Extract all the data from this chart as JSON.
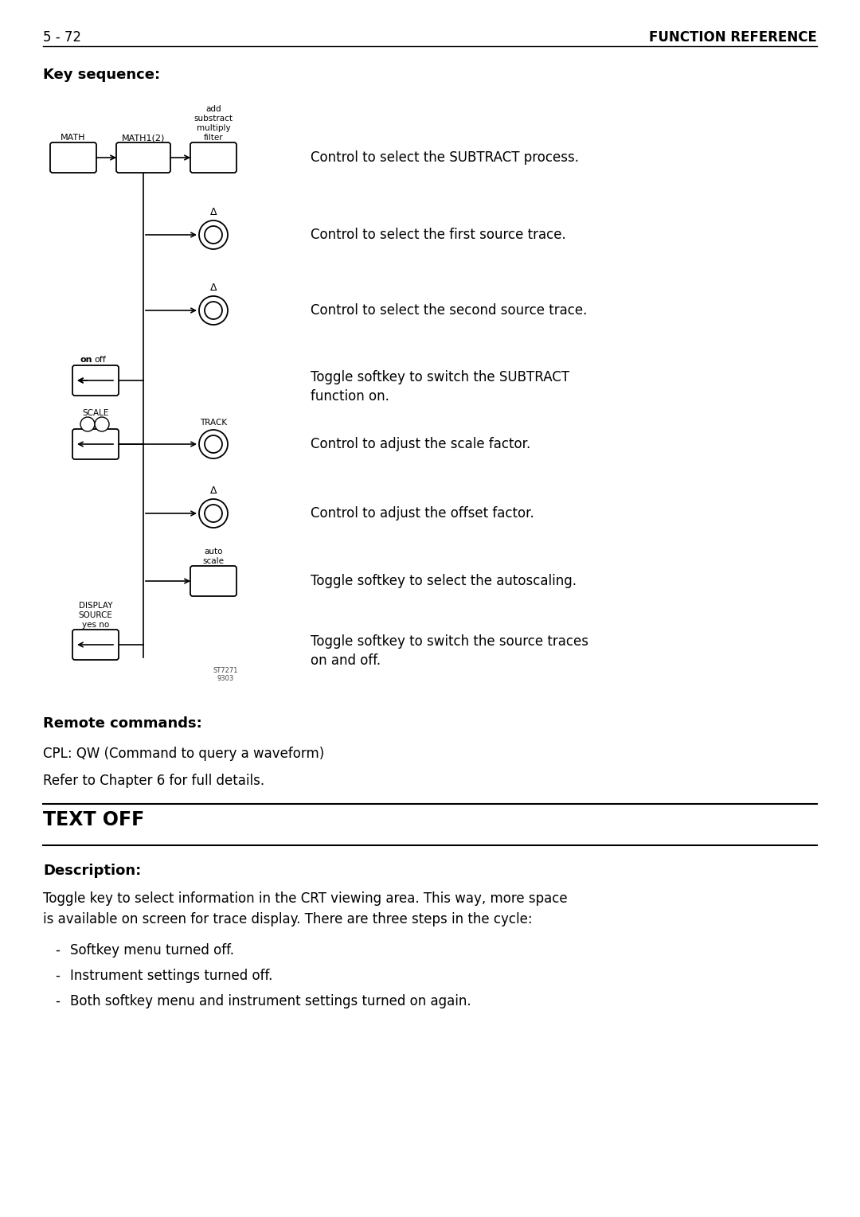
{
  "bg_color": "#ffffff",
  "page_num": "5 - 72",
  "page_title": "FUNCTION REFERENCE",
  "section1_title": "Key sequence:",
  "remote_commands_title": "Remote commands:",
  "remote_line1": "CPL: QW (Command to query a waveform)",
  "remote_line2": "Refer to Chapter 6 for full details.",
  "section2_title": "TEXT OFF",
  "description_title": "Description:",
  "description_text": "Toggle key to select information in the CRT viewing area. This way, more space\nis available on screen for trace display. There are three steps in the cycle:",
  "bullet_items": [
    "Softkey menu turned off.",
    "Instrument settings turned off.",
    "Both softkey menu and instrument settings turned on again."
  ],
  "watermark": "ST7271\n9303",
  "descriptions": [
    "Control to select the SUBTRACT process.",
    "Control to select the first source trace.",
    "Control to select the second source trace.",
    "Toggle softkey to switch the SUBTRACT\nfunction on.",
    "Control to adjust the scale factor.",
    "Control to adjust the offset factor.",
    "Toggle softkey to select the autoscaling.",
    "Toggle softkey to switch the source traces\non and off."
  ]
}
